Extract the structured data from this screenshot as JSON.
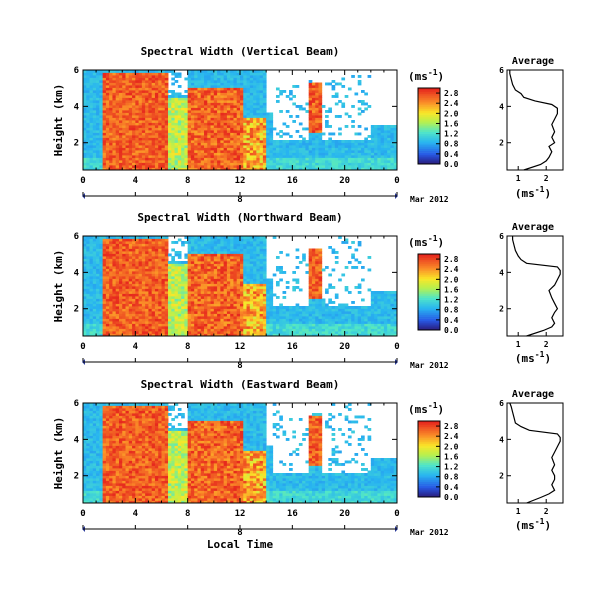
{
  "chart_data": [
    {
      "type": "heatmap",
      "title": "Spectral Width (Vertical Beam)",
      "ylabel": "Height (km)",
      "x_ticks": [
        "0",
        "4",
        "8",
        "12",
        "16",
        "20",
        "0"
      ],
      "y_ticks": [
        "2",
        "4",
        "6"
      ],
      "xlim": [
        0,
        24
      ],
      "ylim": [
        0.5,
        6
      ],
      "day_label": "8",
      "date_label": "Mar 2012",
      "colorbar": {
        "unit": "(ms",
        "unit_sup": "-1",
        "unit_close": ")",
        "ticks": [
          "0.0",
          "0.4",
          "0.8",
          "1.2",
          "1.6",
          "2.0",
          "2.4",
          "2.8"
        ],
        "range": [
          0,
          3.0
        ]
      },
      "average_profile": {
        "title": "Average",
        "xlabel": "(ms",
        "xlabel_sup": "-1",
        "xlabel_close": ")",
        "x_ticks": [
          "1",
          "2"
        ],
        "y_ticks": [
          "2",
          "4",
          "6"
        ],
        "xlim": [
          0.6,
          2.6
        ],
        "heights": [
          0.5,
          0.8,
          1.0,
          1.2,
          1.5,
          1.8,
          2.0,
          2.3,
          2.6,
          3.0,
          3.3,
          3.6,
          3.9,
          4.1,
          4.3,
          4.5,
          4.7,
          4.9,
          5.2,
          5.5,
          5.8,
          6.0
        ],
        "values": [
          1.2,
          1.8,
          2.0,
          2.1,
          2.2,
          2.1,
          2.3,
          2.2,
          2.3,
          2.2,
          2.3,
          2.4,
          2.4,
          2.2,
          1.6,
          1.2,
          1.1,
          0.9,
          0.8,
          0.75,
          0.7,
          0.7
        ]
      }
    },
    {
      "type": "heatmap",
      "title": "Spectral Width (Northward Beam)",
      "ylabel": "Height (km)",
      "x_ticks": [
        "0",
        "4",
        "8",
        "12",
        "16",
        "20",
        "0"
      ],
      "y_ticks": [
        "2",
        "4",
        "6"
      ],
      "xlim": [
        0,
        24
      ],
      "ylim": [
        0.5,
        6
      ],
      "day_label": "8",
      "date_label": "Mar 2012",
      "colorbar": {
        "unit": "(ms",
        "unit_sup": "-1",
        "unit_close": ")",
        "ticks": [
          "0.0",
          "0.4",
          "0.8",
          "1.2",
          "1.6",
          "2.0",
          "2.4",
          "2.8"
        ],
        "range": [
          0,
          3.0
        ]
      },
      "average_profile": {
        "title": "Average",
        "xlabel": "(ms",
        "xlabel_sup": "-1",
        "xlabel_close": ")",
        "x_ticks": [
          "1",
          "2"
        ],
        "y_ticks": [
          "2",
          "4",
          "6"
        ],
        "xlim": [
          0.6,
          2.6
        ],
        "heights": [
          0.5,
          0.8,
          1.0,
          1.2,
          1.5,
          1.8,
          2.0,
          2.3,
          2.6,
          3.0,
          3.3,
          3.6,
          3.9,
          4.1,
          4.3,
          4.5,
          4.7,
          4.9,
          5.2,
          5.5,
          5.8,
          6.0
        ],
        "values": [
          1.3,
          1.9,
          2.2,
          2.3,
          2.2,
          2.3,
          2.4,
          2.3,
          2.2,
          2.1,
          2.3,
          2.4,
          2.5,
          2.5,
          2.4,
          1.3,
          1.1,
          1.0,
          0.9,
          0.85,
          0.8,
          0.8
        ]
      }
    },
    {
      "type": "heatmap",
      "title": "Spectral Width (Eastward Beam)",
      "ylabel": "Height (km)",
      "xlabel": "Local Time",
      "x_ticks": [
        "0",
        "4",
        "8",
        "12",
        "16",
        "20",
        "0"
      ],
      "y_ticks": [
        "2",
        "4",
        "6"
      ],
      "xlim": [
        0,
        24
      ],
      "ylim": [
        0.5,
        6
      ],
      "day_label": "8",
      "date_label": "Mar 2012",
      "colorbar": {
        "unit": "(ms",
        "unit_sup": "-1",
        "unit_close": ")",
        "ticks": [
          "0.0",
          "0.4",
          "0.8",
          "1.2",
          "1.6",
          "2.0",
          "2.4",
          "2.8"
        ],
        "range": [
          0,
          3.0
        ]
      },
      "average_profile": {
        "title": "Average",
        "xlabel": "(ms",
        "xlabel_sup": "-1",
        "xlabel_close": ")",
        "x_ticks": [
          "1",
          "2"
        ],
        "y_ticks": [
          "2",
          "4",
          "6"
        ],
        "xlim": [
          0.6,
          2.6
        ],
        "heights": [
          0.5,
          0.8,
          1.0,
          1.2,
          1.5,
          1.8,
          2.0,
          2.3,
          2.6,
          3.0,
          3.3,
          3.6,
          3.9,
          4.1,
          4.3,
          4.5,
          4.7,
          4.9,
          5.2,
          5.5,
          5.8,
          6.0
        ],
        "values": [
          1.3,
          1.8,
          2.1,
          2.3,
          2.2,
          2.3,
          2.3,
          2.2,
          2.3,
          2.2,
          2.3,
          2.4,
          2.5,
          2.5,
          2.4,
          1.4,
          1.1,
          0.9,
          0.85,
          0.8,
          0.75,
          0.7
        ]
      }
    }
  ]
}
